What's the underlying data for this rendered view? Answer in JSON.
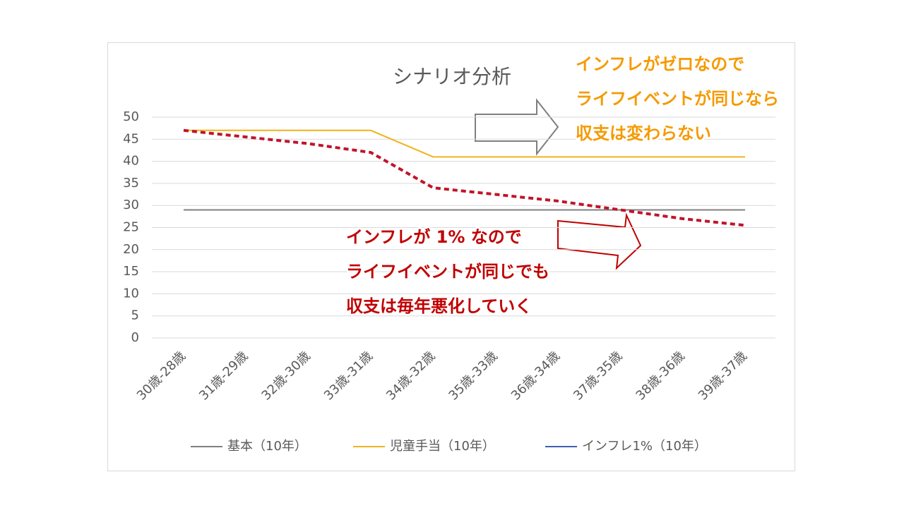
{
  "chart_data": {
    "type": "line",
    "title": "シナリオ分析",
    "categories": [
      "30歳-28歳",
      "31歳-29歳",
      "32歳-30歳",
      "33歳-31歳",
      "34歳-32歳",
      "35歳-33歳",
      "36歳-34歳",
      "37歳-35歳",
      "38歳-36歳",
      "39歳-37歳"
    ],
    "series": [
      {
        "name": "基本（10年）",
        "color": "#7f7f7f",
        "values": [
          29,
          29,
          29,
          29,
          29,
          29,
          29,
          29,
          29,
          29
        ]
      },
      {
        "name": "児童手当（10年）",
        "color": "#f0b41e",
        "values": [
          47,
          47,
          47,
          47,
          41,
          41,
          41,
          41,
          41,
          41
        ]
      },
      {
        "name": "インフレ1%（10年）",
        "color": "#c0142a",
        "legend_color": "#4060b0",
        "dashed": true,
        "values": [
          47,
          45.5,
          44,
          42,
          34,
          32.5,
          31,
          29,
          27,
          25.5
        ]
      }
    ],
    "ylim": [
      0,
      50
    ],
    "yticks": [
      0,
      5,
      10,
      15,
      20,
      25,
      30,
      35,
      40,
      45,
      50
    ],
    "grid": true,
    "annotations": [
      {
        "color": "#f59a00",
        "lines": [
          "インフレがゼロなので",
          "ライフイベントが同じなら",
          "収支は変わらない"
        ]
      },
      {
        "color": "#c00000",
        "lines": [
          "インフレが 1% なので",
          "ライフイベントが同じでも",
          "収支は毎年悪化していく"
        ]
      }
    ]
  }
}
